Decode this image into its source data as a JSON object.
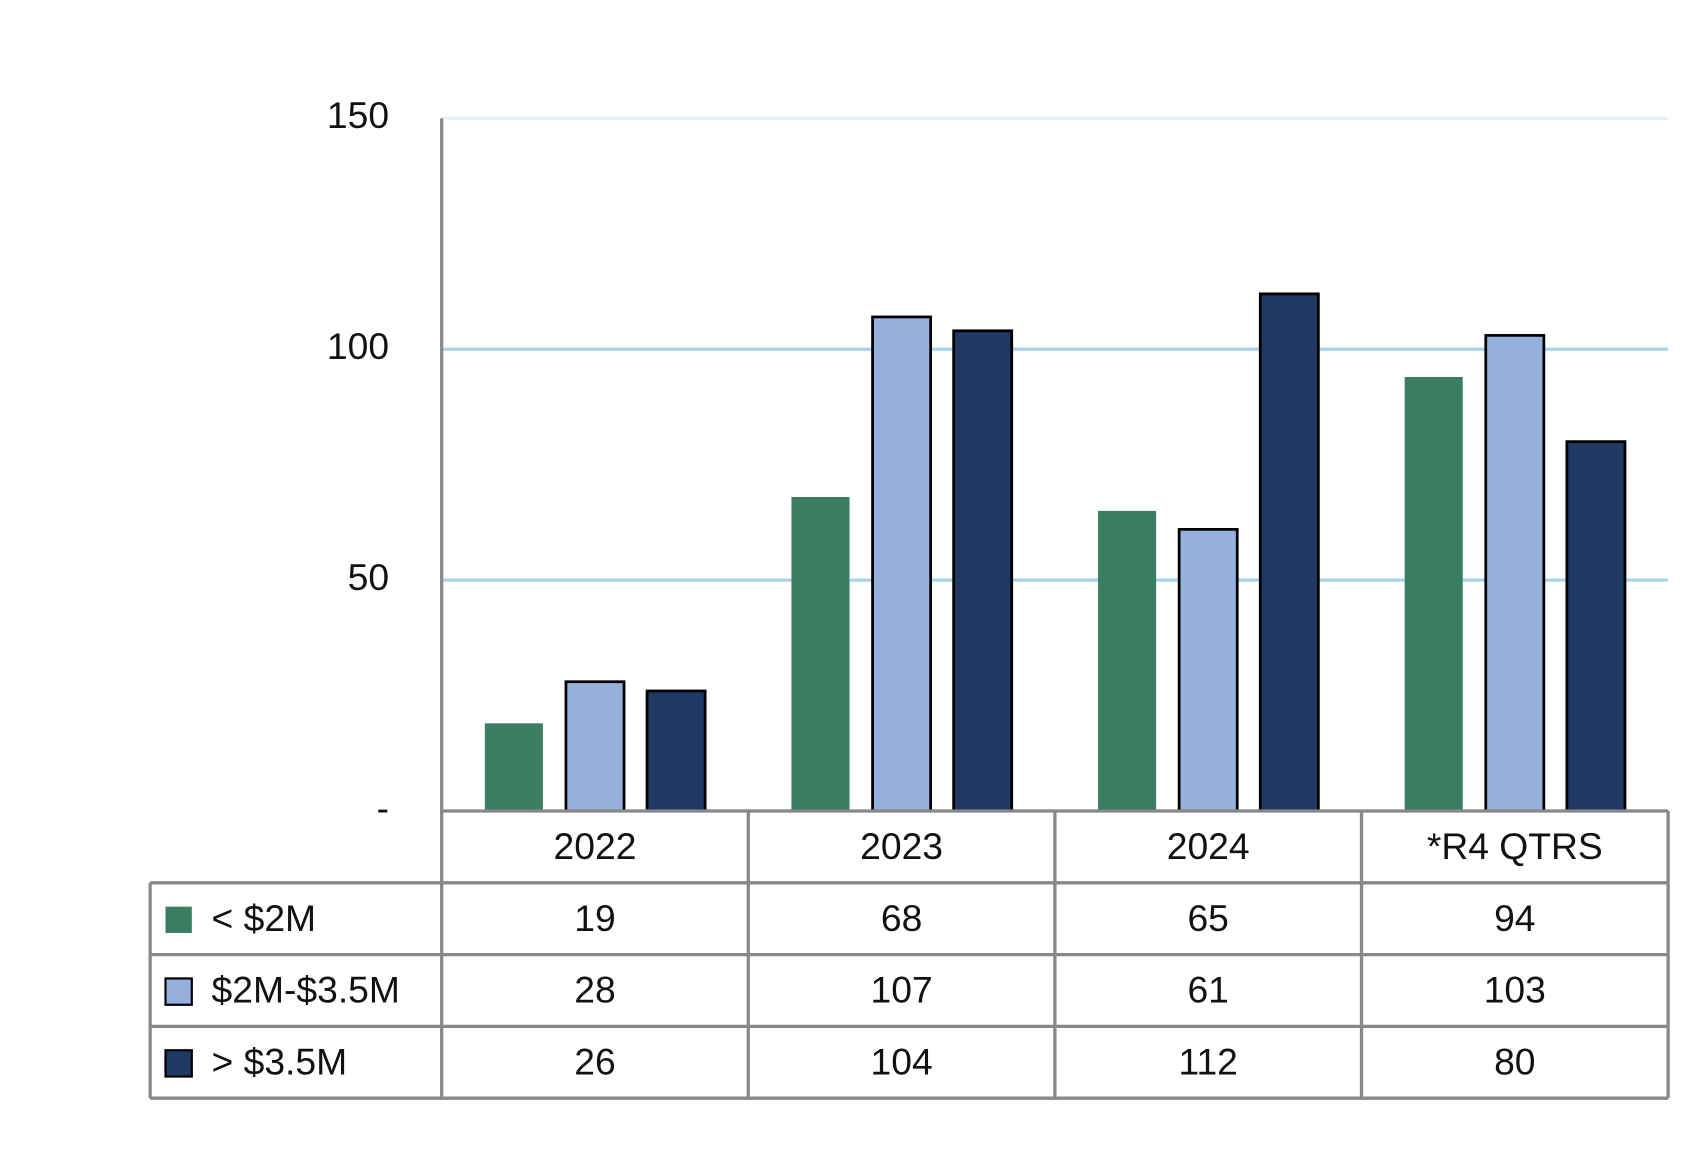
{
  "chart_data": {
    "type": "bar",
    "categories": [
      "2022",
      "2023",
      "2024",
      "*R4 QTRS"
    ],
    "series": [
      {
        "name": "< $2M",
        "color": "#3a7d62",
        "values": [
          19,
          68,
          65,
          94
        ]
      },
      {
        "name": "$2M-$3.5M",
        "color": "#95b0dd",
        "edgecolor": "#000000",
        "values": [
          28,
          107,
          61,
          103
        ]
      },
      {
        "name": "> $3.5M",
        "color": "#203864",
        "edgecolor": "#000000",
        "values": [
          26,
          104,
          112,
          80
        ]
      }
    ],
    "ylim": [
      0,
      150
    ],
    "yticks": [
      {
        "value": 0,
        "label": "-"
      },
      50,
      100,
      150
    ],
    "grid": true,
    "grid_color": "#a9d3ec",
    "data_table": true
  }
}
